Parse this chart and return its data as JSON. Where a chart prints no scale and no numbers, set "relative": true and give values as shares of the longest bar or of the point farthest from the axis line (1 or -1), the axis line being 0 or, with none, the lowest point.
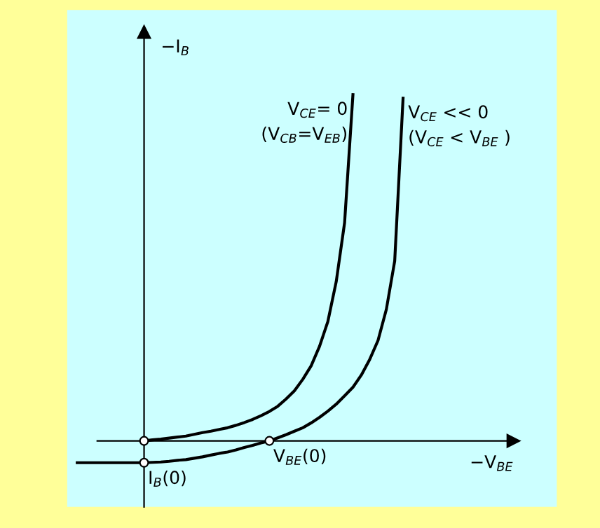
{
  "chart_data": {
    "type": "line",
    "relative": true,
    "xlabel": "−V$_{BE}$",
    "ylabel": "−I$_{B}$",
    "categories": [
      null,
      null,
      null,
      null,
      null,
      null,
      null,
      null,
      null,
      null,
      null,
      null,
      null,
      null,
      null,
      null,
      null,
      null,
      null,
      null,
      null,
      null,
      null,
      null,
      null,
      null,
      null,
      null,
      null,
      null,
      null,
      null,
      null,
      null,
      null,
      null,
      null,
      null,
      null,
      null
    ],
    "series": [
      {
        "name": "V$_{CE}$= 0\n(V$_{CB}$=V$_{EB}$)",
        "color": "#000000",
        "values": [
          null,
          null,
          null,
          null,
          null,
          null,
          null,
          null,
          0,
          0.003,
          0.005,
          0.008,
          0.011,
          0.014,
          0.019,
          0.024,
          0.028,
          0.033,
          0.038,
          0.045,
          0.053,
          0.062,
          0.073,
          0.085,
          0.1,
          0.121,
          0.145,
          0.178,
          0.217,
          0.273,
          0.345,
          0.46,
          0.63,
          1,
          null,
          null,
          null,
          null,
          null,
          null
        ]
      },
      {
        "name": "V$_{CE}$ << 0\n(V$_{CE}$ < V$_{BE}$ )",
        "color": "#000000",
        "values": [
          -0.063,
          -0.063,
          -0.063,
          -0.063,
          -0.063,
          -0.063,
          -0.063,
          -0.063,
          -0.063,
          -0.062,
          -0.061,
          -0.059,
          -0.056,
          -0.054,
          -0.05,
          -0.046,
          -0.041,
          -0.036,
          -0.032,
          -0.026,
          -0.019,
          -0.013,
          -0.006,
          0,
          0.009,
          0.018,
          0.028,
          0.038,
          0.052,
          0.068,
          0.086,
          0.106,
          0.13,
          0.155,
          0.19,
          0.235,
          0.29,
          0.38,
          0.52,
          0.99
        ]
      }
    ],
    "annotations": [
      "I$_{B}$(0)",
      "V$_{BE}$(0)"
    ],
    "legend": false
  }
}
